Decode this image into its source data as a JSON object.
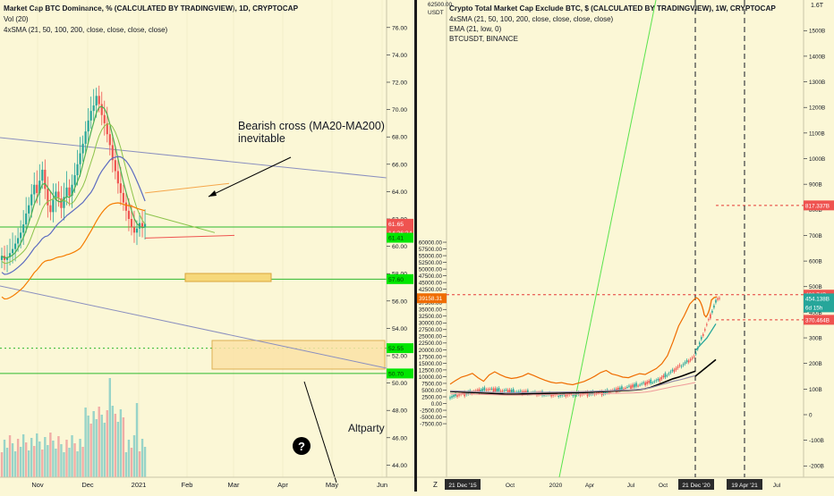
{
  "left_panel": {
    "legend": {
      "title": "Market Cap BTC Dominance, % (CALCULATED BY TRADINGVIEW), 1D, CRYPTOCAP",
      "line2": "Vol (20)",
      "line3": "4xSMA (21, 50, 100, 200, close, close, close, close)"
    },
    "annotation_text_1": "Bearish cross (MA20-MA200)",
    "annotation_text_2": "inevitable",
    "altparty_label": "Altparty",
    "question_glyph": "?",
    "price_badges": [
      {
        "value": "61.65",
        "color": "#ef5350"
      },
      {
        "value": "14:36:34",
        "color": "#ef5350"
      },
      {
        "value": "61.41",
        "color": "#00e600"
      },
      {
        "value": "57.60",
        "color": "#00e600"
      },
      {
        "value": "52.55",
        "color": "#00e600"
      },
      {
        "value": "50.70",
        "color": "#00e600"
      }
    ]
  },
  "right_panel": {
    "legend": {
      "title": "Crypto Total Market Cap Exclude BTC, $ (CALCULATED BY TRADINGVIEW), 1W, CRYPTOCAP",
      "line2": "4xSMA (21, 50, 100, 200, close, close, close, close)",
      "line3": "EMA (21, low, 0)",
      "line4": "BTCUSDT, BINANCE"
    },
    "currency_label": "USDT",
    "left_scale_top_label": "62500.00",
    "right_scale_top_label": "1.6T",
    "price_badges_left": [
      {
        "value": "39158.31",
        "color": "#ef6c00"
      }
    ],
    "price_badges_right": [
      {
        "value": "817.337B",
        "color": "#ef5350"
      },
      {
        "value": "468.74B",
        "color": "#ef5350"
      },
      {
        "value": "454.138B",
        "color": "#26a69a"
      },
      {
        "value": "6d 15h",
        "color": "#26a69a"
      },
      {
        "value": "370.464B",
        "color": "#ef5350"
      }
    ],
    "x_axis_first_date": "21 Dec '15",
    "x_axis_vline_date_1": "21 Dec '20",
    "x_axis_vline_date_2": "19 Apr '21",
    "tz_label": "Z"
  },
  "chart_data": [
    {
      "type": "line",
      "title": "Market Cap BTC Dominance, % (CALCULATED BY TRADINGVIEW), 1D, CRYPTOCAP",
      "x_ticks": [
        "Nov",
        "Dec",
        "2021",
        "Feb",
        "Mar",
        "Apr",
        "May",
        "Jun"
      ],
      "y_ticks": [
        44,
        46,
        48,
        50,
        52,
        54,
        56,
        58,
        60,
        62,
        64,
        66,
        68,
        70,
        72,
        74,
        76
      ],
      "ylim": [
        42.5,
        77.5
      ],
      "x_index": [
        0,
        1,
        2,
        3,
        4,
        5,
        6,
        7,
        8,
        9,
        10,
        11,
        12,
        13,
        14,
        15,
        16,
        17,
        18,
        19,
        20,
        21,
        22,
        23,
        24,
        25,
        26,
        27,
        28,
        29,
        30,
        31,
        32,
        33,
        34,
        35,
        36,
        37,
        38,
        39,
        40,
        41,
        42,
        43,
        44,
        45,
        46,
        47,
        48,
        49,
        50,
        51,
        52,
        53,
        54,
        55,
        56,
        57,
        58,
        59,
        60,
        61,
        62,
        63,
        64,
        65,
        66,
        67,
        68,
        69,
        70,
        71,
        72,
        73,
        74
      ],
      "price_close": [
        59.3,
        59.0,
        59.2,
        59.5,
        59.8,
        60.2,
        60.6,
        61.0,
        61.6,
        62.4,
        63.0,
        63.8,
        64.5,
        63.9,
        64.8,
        65.6,
        64.2,
        63.0,
        62.5,
        63.4,
        64.0,
        63.5,
        62.8,
        63.6,
        64.3,
        63.7,
        64.5,
        65.2,
        66.0,
        66.8,
        67.5,
        68.4,
        69.2,
        69.9,
        70.3,
        71.0,
        70.4,
        69.6,
        69.0,
        68.2,
        67.4,
        66.3,
        65.5,
        64.6,
        63.9,
        63.2,
        62.6,
        62.0,
        61.4,
        61.0,
        61.3,
        61.7,
        61.4,
        61.65,
        61.65,
        61.65,
        61.65,
        61.65,
        61.65,
        61.65,
        61.65,
        61.65,
        61.65,
        61.65,
        61.65,
        61.65,
        61.65,
        61.65,
        61.65,
        61.65,
        61.65,
        61.65,
        61.65,
        61.65,
        61.65
      ],
      "horizontal_levels": [
        61.41,
        57.6,
        52.55,
        50.7
      ]
    },
    {
      "type": "line",
      "title": "Crypto Total Market Cap Exclude BTC, $ (CALCULATED BY TRADINGVIEW), 1W, CRYPTOCAP",
      "x_ticks": [
        "21 Dec '15",
        "Oct",
        "2020",
        "Apr",
        "Jul",
        "Oct",
        "21 Dec '20",
        "19 Apr '21",
        "Jul"
      ],
      "y_ticks_left": [
        -7500,
        -5000,
        -2500,
        0,
        2500,
        5000,
        7500,
        10000,
        12500,
        15000,
        17500,
        20000,
        22500,
        25000,
        27500,
        30000,
        32500,
        35000,
        37500,
        40000,
        42500,
        45000,
        47500,
        50000,
        52500,
        55000,
        57500,
        60000
      ],
      "y_ticks_right": [
        "-200B",
        "-100B",
        "0",
        "100B",
        "200B",
        "300B",
        "400B",
        "500B",
        "600B",
        "700B",
        "800B",
        "900B",
        "1000B",
        "1100B",
        "1200B",
        "1300B",
        "1400B",
        "1500B",
        "1.6T"
      ],
      "series": [
        {
          "name": "BTCUSDT, BINANCE",
          "color": "#ef6c00",
          "values_usdt": [
            7200,
            8600,
            9800,
            10400,
            11200,
            9600,
            8300,
            10600,
            11800,
            10700,
            9800,
            9300,
            9600,
            10200,
            11200,
            10400,
            9500,
            8700,
            8000,
            7600,
            7800,
            7300,
            7000,
            7600,
            8200,
            9100,
            10200,
            11500,
            12300,
            11000,
            10500,
            9800,
            9600,
            10400,
            11100,
            10800,
            11900,
            13000,
            14800,
            17800,
            23000,
            28800,
            32600,
            37000,
            39158
          ]
        },
        {
          "name": "4xSMA (21, 50, 100, 200, close, close, close, close)",
          "color": "#000000",
          "values_usdt": [
            4500,
            4400,
            4300,
            4200,
            4100,
            4000,
            3900,
            3800,
            3700,
            3600,
            3500,
            3450,
            3500,
            3550,
            3600,
            3650,
            3700,
            3750,
            3800,
            3850,
            3900,
            3950,
            4000,
            4050,
            4100,
            4200,
            4300,
            4400,
            4500,
            4600,
            4700,
            4800,
            4900,
            5000,
            5200,
            5500,
            6000,
            6800,
            7600,
            8400,
            9200,
            9800,
            10500,
            11300,
            12000
          ]
        }
      ],
      "horizontal_levels_right_billions": [
        817.337,
        468.74,
        370.464
      ]
    }
  ]
}
